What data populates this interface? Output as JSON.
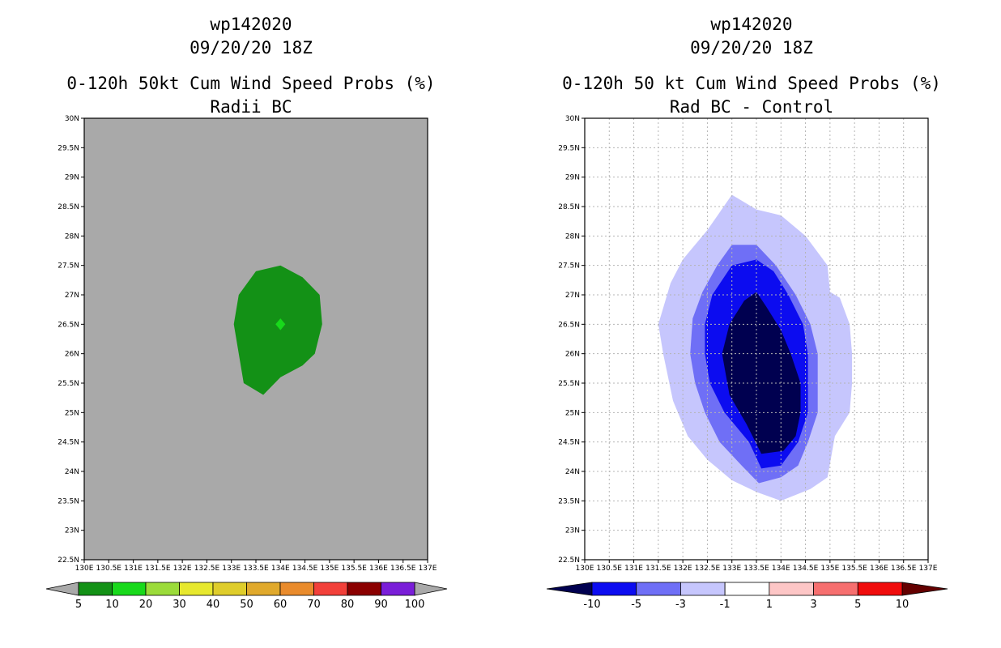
{
  "chart_data": [
    {
      "type": "heatmap",
      "storm_id": "wp142020",
      "datetime": "09/20/20 18Z",
      "title": "0-120h 50kt Cum Wind Speed Probs (%)",
      "subtitle": "Radii BC",
      "xlim": [
        130,
        137
      ],
      "ylim": [
        22.5,
        30
      ],
      "x_tick_values": [
        130,
        130.5,
        131,
        131.5,
        132,
        132.5,
        133,
        133.5,
        134,
        134.5,
        135,
        135.5,
        136,
        136.5,
        137
      ],
      "x_tick_labels": [
        "130E",
        "130.5E",
        "131E",
        "131.5E",
        "132E",
        "132.5E",
        "133E",
        "133.5E",
        "134E",
        "134.5E",
        "135E",
        "135.5E",
        "136E",
        "136.5E",
        "137E"
      ],
      "y_tick_values": [
        22.5,
        23,
        23.5,
        24,
        24.5,
        25,
        25.5,
        26,
        26.5,
        27,
        27.5,
        28,
        28.5,
        29,
        29.5,
        30
      ],
      "y_tick_labels": [
        "22.5N",
        "23N",
        "23.5N",
        "24N",
        "24.5N",
        "25N",
        "25.5N",
        "26N",
        "26.5N",
        "27N",
        "27.5N",
        "28N",
        "28.5N",
        "29N",
        "29.5N",
        "30N"
      ],
      "grid": false,
      "background": "#a9a9a9",
      "regions": [
        {
          "level": "5-10",
          "color": "#139116",
          "lonlat": [
            [
              133.5,
              27.4
            ],
            [
              134,
              27.5
            ],
            [
              134.45,
              27.3
            ],
            [
              134.8,
              27
            ],
            [
              134.85,
              26.5
            ],
            [
              134.7,
              26
            ],
            [
              134.45,
              25.8
            ],
            [
              134,
              25.6
            ],
            [
              133.65,
              25.3
            ],
            [
              133.25,
              25.5
            ],
            [
              133.05,
              26.5
            ],
            [
              133.15,
              27
            ]
          ]
        },
        {
          "level": "10-20",
          "color": "#18d91b",
          "lonlat": [
            [
              134,
              26.6
            ],
            [
              134.1,
              26.5
            ],
            [
              134,
              26.4
            ],
            [
              133.9,
              26.5
            ]
          ]
        }
      ],
      "colorbar": {
        "labels": [
          "5",
          "10",
          "20",
          "30",
          "40",
          "50",
          "60",
          "70",
          "80",
          "90",
          "100"
        ],
        "colors": [
          "#139116",
          "#18d91b",
          "#9bdb3a",
          "#e7e82e",
          "#dfcd2b",
          "#e0a92c",
          "#e98b2c",
          "#f2403a",
          "#8b0000",
          "#7a1ed8"
        ],
        "under_color": "#a9a9a9",
        "over_color": "#a9a9a9"
      }
    },
    {
      "type": "heatmap",
      "storm_id": "wp142020",
      "datetime": "09/20/20 18Z",
      "title": "0-120h 50 kt Cum Wind Speed Probs (%)",
      "subtitle": "Rad BC - Control",
      "xlim": [
        130,
        137
      ],
      "ylim": [
        22.5,
        30
      ],
      "x_tick_values": [
        130,
        130.5,
        131,
        131.5,
        132,
        132.5,
        133,
        133.5,
        134,
        134.5,
        135,
        135.5,
        136,
        136.5,
        137
      ],
      "x_tick_labels": [
        "130E",
        "130.5E",
        "131E",
        "131.5E",
        "132E",
        "132.5E",
        "133E",
        "133.5E",
        "134E",
        "134.5E",
        "135E",
        "135.5E",
        "136E",
        "136.5E",
        "137E"
      ],
      "y_tick_values": [
        22.5,
        23,
        23.5,
        24,
        24.5,
        25,
        25.5,
        26,
        26.5,
        27,
        27.5,
        28,
        28.5,
        29,
        29.5,
        30
      ],
      "y_tick_labels": [
        "22.5N",
        "23N",
        "23.5N",
        "24N",
        "24.5N",
        "25N",
        "25.5N",
        "26N",
        "26.5N",
        "27N",
        "27.5N",
        "28N",
        "28.5N",
        "29N",
        "29.5N",
        "30N"
      ],
      "grid": true,
      "background": "#ffffff",
      "regions": [
        {
          "level": "-3 to -1",
          "color": "#c6c6fd",
          "lonlat": [
            [
              133,
              28.7
            ],
            [
              133.5,
              28.45
            ],
            [
              134,
              28.35
            ],
            [
              134.5,
              28
            ],
            [
              134.95,
              27.5
            ],
            [
              135,
              27.05
            ],
            [
              135.2,
              26.95
            ],
            [
              135.4,
              26.5
            ],
            [
              135.45,
              26
            ],
            [
              135.45,
              25.5
            ],
            [
              135.4,
              25
            ],
            [
              135.1,
              24.6
            ],
            [
              134.95,
              23.9
            ],
            [
              134.6,
              23.7
            ],
            [
              134,
              23.5
            ],
            [
              133.5,
              23.65
            ],
            [
              133,
              23.85
            ],
            [
              132.5,
              24.2
            ],
            [
              132.1,
              24.6
            ],
            [
              131.8,
              25.2
            ],
            [
              131.6,
              26
            ],
            [
              131.5,
              26.5
            ],
            [
              131.75,
              27.2
            ],
            [
              132,
              27.6
            ],
            [
              132.5,
              28.1
            ]
          ]
        },
        {
          "level": "-5 to -3",
          "color": "#6f6ff6",
          "lonlat": [
            [
              133,
              27.85
            ],
            [
              133.5,
              27.85
            ],
            [
              133.9,
              27.5
            ],
            [
              134.3,
              27
            ],
            [
              134.6,
              26.5
            ],
            [
              134.75,
              26
            ],
            [
              134.75,
              25.5
            ],
            [
              134.75,
              25
            ],
            [
              134.55,
              24.5
            ],
            [
              134.35,
              24.1
            ],
            [
              134,
              23.9
            ],
            [
              133.55,
              23.8
            ],
            [
              133.2,
              24.1
            ],
            [
              132.75,
              24.5
            ],
            [
              132.45,
              25
            ],
            [
              132.25,
              25.5
            ],
            [
              132.15,
              26
            ],
            [
              132.2,
              26.6
            ],
            [
              132.4,
              27.05
            ],
            [
              132.7,
              27.5
            ]
          ]
        },
        {
          "level": "-10 to -5",
          "color": "#0c0cf0",
          "lonlat": [
            [
              133.5,
              27.6
            ],
            [
              133.85,
              27.4
            ],
            [
              134.15,
              27
            ],
            [
              134.45,
              26.5
            ],
            [
              134.55,
              26
            ],
            [
              134.55,
              25.5
            ],
            [
              134.55,
              25
            ],
            [
              134.35,
              24.5
            ],
            [
              134,
              24.1
            ],
            [
              133.6,
              24.05
            ],
            [
              133.35,
              24.5
            ],
            [
              132.85,
              25
            ],
            [
              132.55,
              25.5
            ],
            [
              132.45,
              26
            ],
            [
              132.45,
              26.5
            ],
            [
              132.6,
              27
            ],
            [
              133,
              27.5
            ]
          ]
        },
        {
          "level": "< -10",
          "color": "#000050",
          "lonlat": [
            [
              133.5,
              27.05
            ],
            [
              133.7,
              26.8
            ],
            [
              134,
              26.4
            ],
            [
              134.2,
              26
            ],
            [
              134.4,
              25.5
            ],
            [
              134.4,
              25
            ],
            [
              134.3,
              24.6
            ],
            [
              134.05,
              24.35
            ],
            [
              133.6,
              24.3
            ],
            [
              133.3,
              24.8
            ],
            [
              132.95,
              25.3
            ],
            [
              132.8,
              26
            ],
            [
              132.95,
              26.5
            ],
            [
              133.25,
              26.9
            ]
          ]
        }
      ],
      "colorbar": {
        "labels": [
          "-10",
          "-5",
          "-3",
          "-1",
          "1",
          "3",
          "5",
          "10"
        ],
        "colors": [
          "#0c0cf0",
          "#6f6ff6",
          "#c6c6fd",
          "#ffffff",
          "#fdc6c6",
          "#f66f6f",
          "#f00c0c"
        ],
        "under_color": "#000050",
        "over_color": "#640000"
      }
    }
  ]
}
